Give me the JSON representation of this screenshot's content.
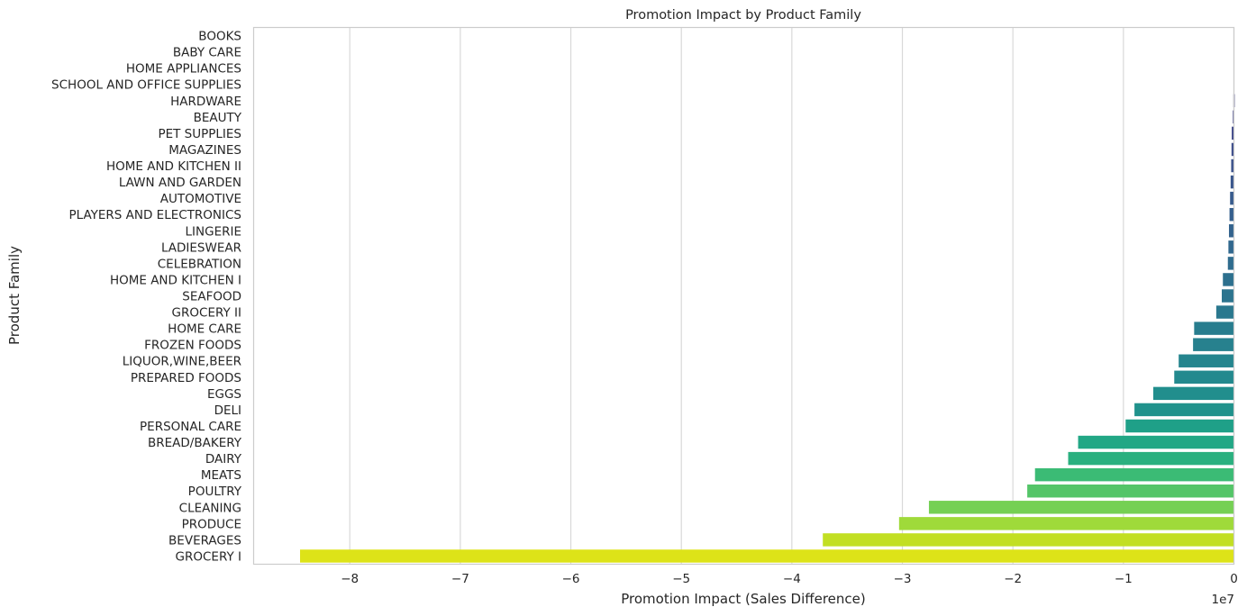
{
  "chart_data": {
    "type": "bar",
    "orientation": "horizontal",
    "title": "Promotion Impact by Product Family",
    "xlabel": "Promotion Impact (Sales Difference)",
    "ylabel": "Product Family",
    "x_offset_label": "1e7",
    "xlim": [
      -8.87,
      0
    ],
    "xticks": [
      -8,
      -7,
      -6,
      -5,
      -4,
      -3,
      -2,
      -1,
      0
    ],
    "xtick_labels": [
      "−8",
      "−7",
      "−6",
      "−5",
      "−4",
      "−3",
      "−2",
      "−1",
      "0"
    ],
    "grid": "vertical",
    "palette": "viridis",
    "categories": [
      "BOOKS",
      "BABY CARE",
      "HOME APPLIANCES",
      "SCHOOL AND OFFICE SUPPLIES",
      "HARDWARE",
      "BEAUTY",
      "PET SUPPLIES",
      "MAGAZINES",
      "HOME AND KITCHEN II",
      "LAWN AND GARDEN",
      "AUTOMOTIVE",
      "PLAYERS AND ELECTRONICS",
      "LINGERIE",
      "LADIESWEAR",
      "CELEBRATION",
      "HOME AND KITCHEN I",
      "SEAFOOD",
      "GROCERY II",
      "HOME CARE",
      "FROZEN FOODS",
      "LIQUOR,WINE,BEER",
      "PREPARED FOODS",
      "EGGS",
      "DELI",
      "PERSONAL CARE",
      "BREAD/BAKERY",
      "DAIRY",
      "MEATS",
      "POULTRY",
      "CLEANING",
      "PRODUCE",
      "BEVERAGES",
      "GROCERY I"
    ],
    "values": [
      0,
      0,
      0,
      0,
      -0.005,
      -0.01,
      -0.02,
      -0.022,
      -0.025,
      -0.03,
      -0.035,
      -0.04,
      -0.045,
      -0.05,
      -0.055,
      -0.1,
      -0.11,
      -0.16,
      -0.36,
      -0.37,
      -0.5,
      -0.54,
      -0.73,
      -0.9,
      -0.98,
      -1.41,
      -1.5,
      -1.8,
      -1.87,
      -2.76,
      -3.03,
      -3.72,
      -8.45
    ],
    "colors": [
      "#472d7b",
      "#46307e",
      "#45337f",
      "#443a83",
      "#433e85",
      "#414487",
      "#3f4889",
      "#3d4d8a",
      "#3b528b",
      "#39568c",
      "#375b8d",
      "#355f8d",
      "#33638d",
      "#31688e",
      "#2f6c8e",
      "#2d708e",
      "#2c748e",
      "#2a788e",
      "#287d8e",
      "#27818e",
      "#25858e",
      "#23898e",
      "#218e8d",
      "#20928c",
      "#1fa088",
      "#22a785",
      "#2ab07f",
      "#3bbb75",
      "#54c568",
      "#75d054",
      "#9fda3a",
      "#c2df23",
      "#dde318"
    ]
  }
}
